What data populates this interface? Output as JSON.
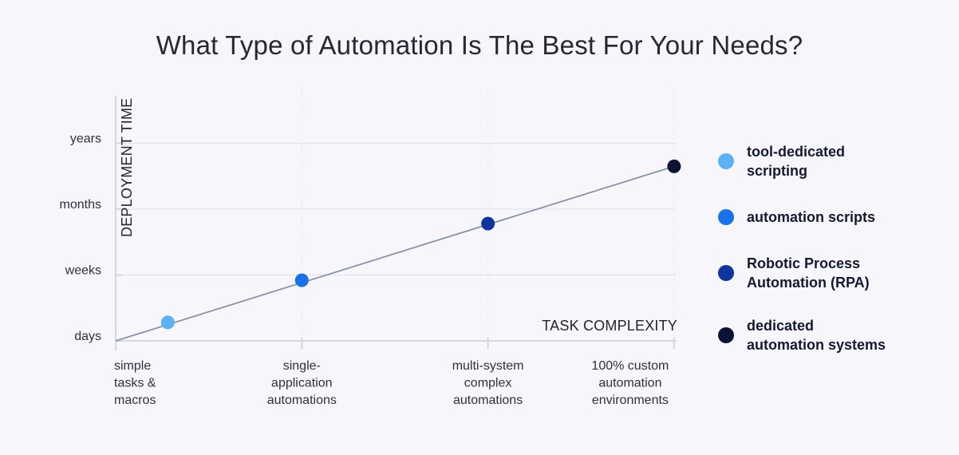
{
  "chart_data": {
    "type": "scatter",
    "title": "What Type of Automation Is The Best For Your Needs?",
    "xlabel": "TASK COMPLEXITY",
    "ylabel": "DEPLOYMENT TIME",
    "y_ticks": [
      "days",
      "weeks",
      "months",
      "years"
    ],
    "x_ticks": [
      "simple\ntasks &\nmacros",
      "single-\napplication\nautomations",
      "multi-system\ncomplex\nautomations",
      "100% custom\nautomation\nenvironments"
    ],
    "xlim": [
      0,
      3
    ],
    "ylim": [
      0,
      3
    ],
    "grid": true,
    "legend_position": "right",
    "series": [
      {
        "name": "tool-dedicated\nscripting",
        "x": 0.28,
        "y": 0.28,
        "color": "#5bb2f5"
      },
      {
        "name": "automation scripts",
        "x": 1.0,
        "y": 0.92,
        "color": "#1a72ea"
      },
      {
        "name": "Robotic Process\nAutomation (RPA)",
        "x": 2.0,
        "y": 1.78,
        "color": "#0f33a0"
      },
      {
        "name": "dedicated\nautomation systems",
        "x": 3.0,
        "y": 2.65,
        "color": "#0a1333"
      }
    ],
    "trend_line": {
      "from": [
        0,
        0
      ],
      "to": [
        3,
        2.65
      ]
    }
  }
}
